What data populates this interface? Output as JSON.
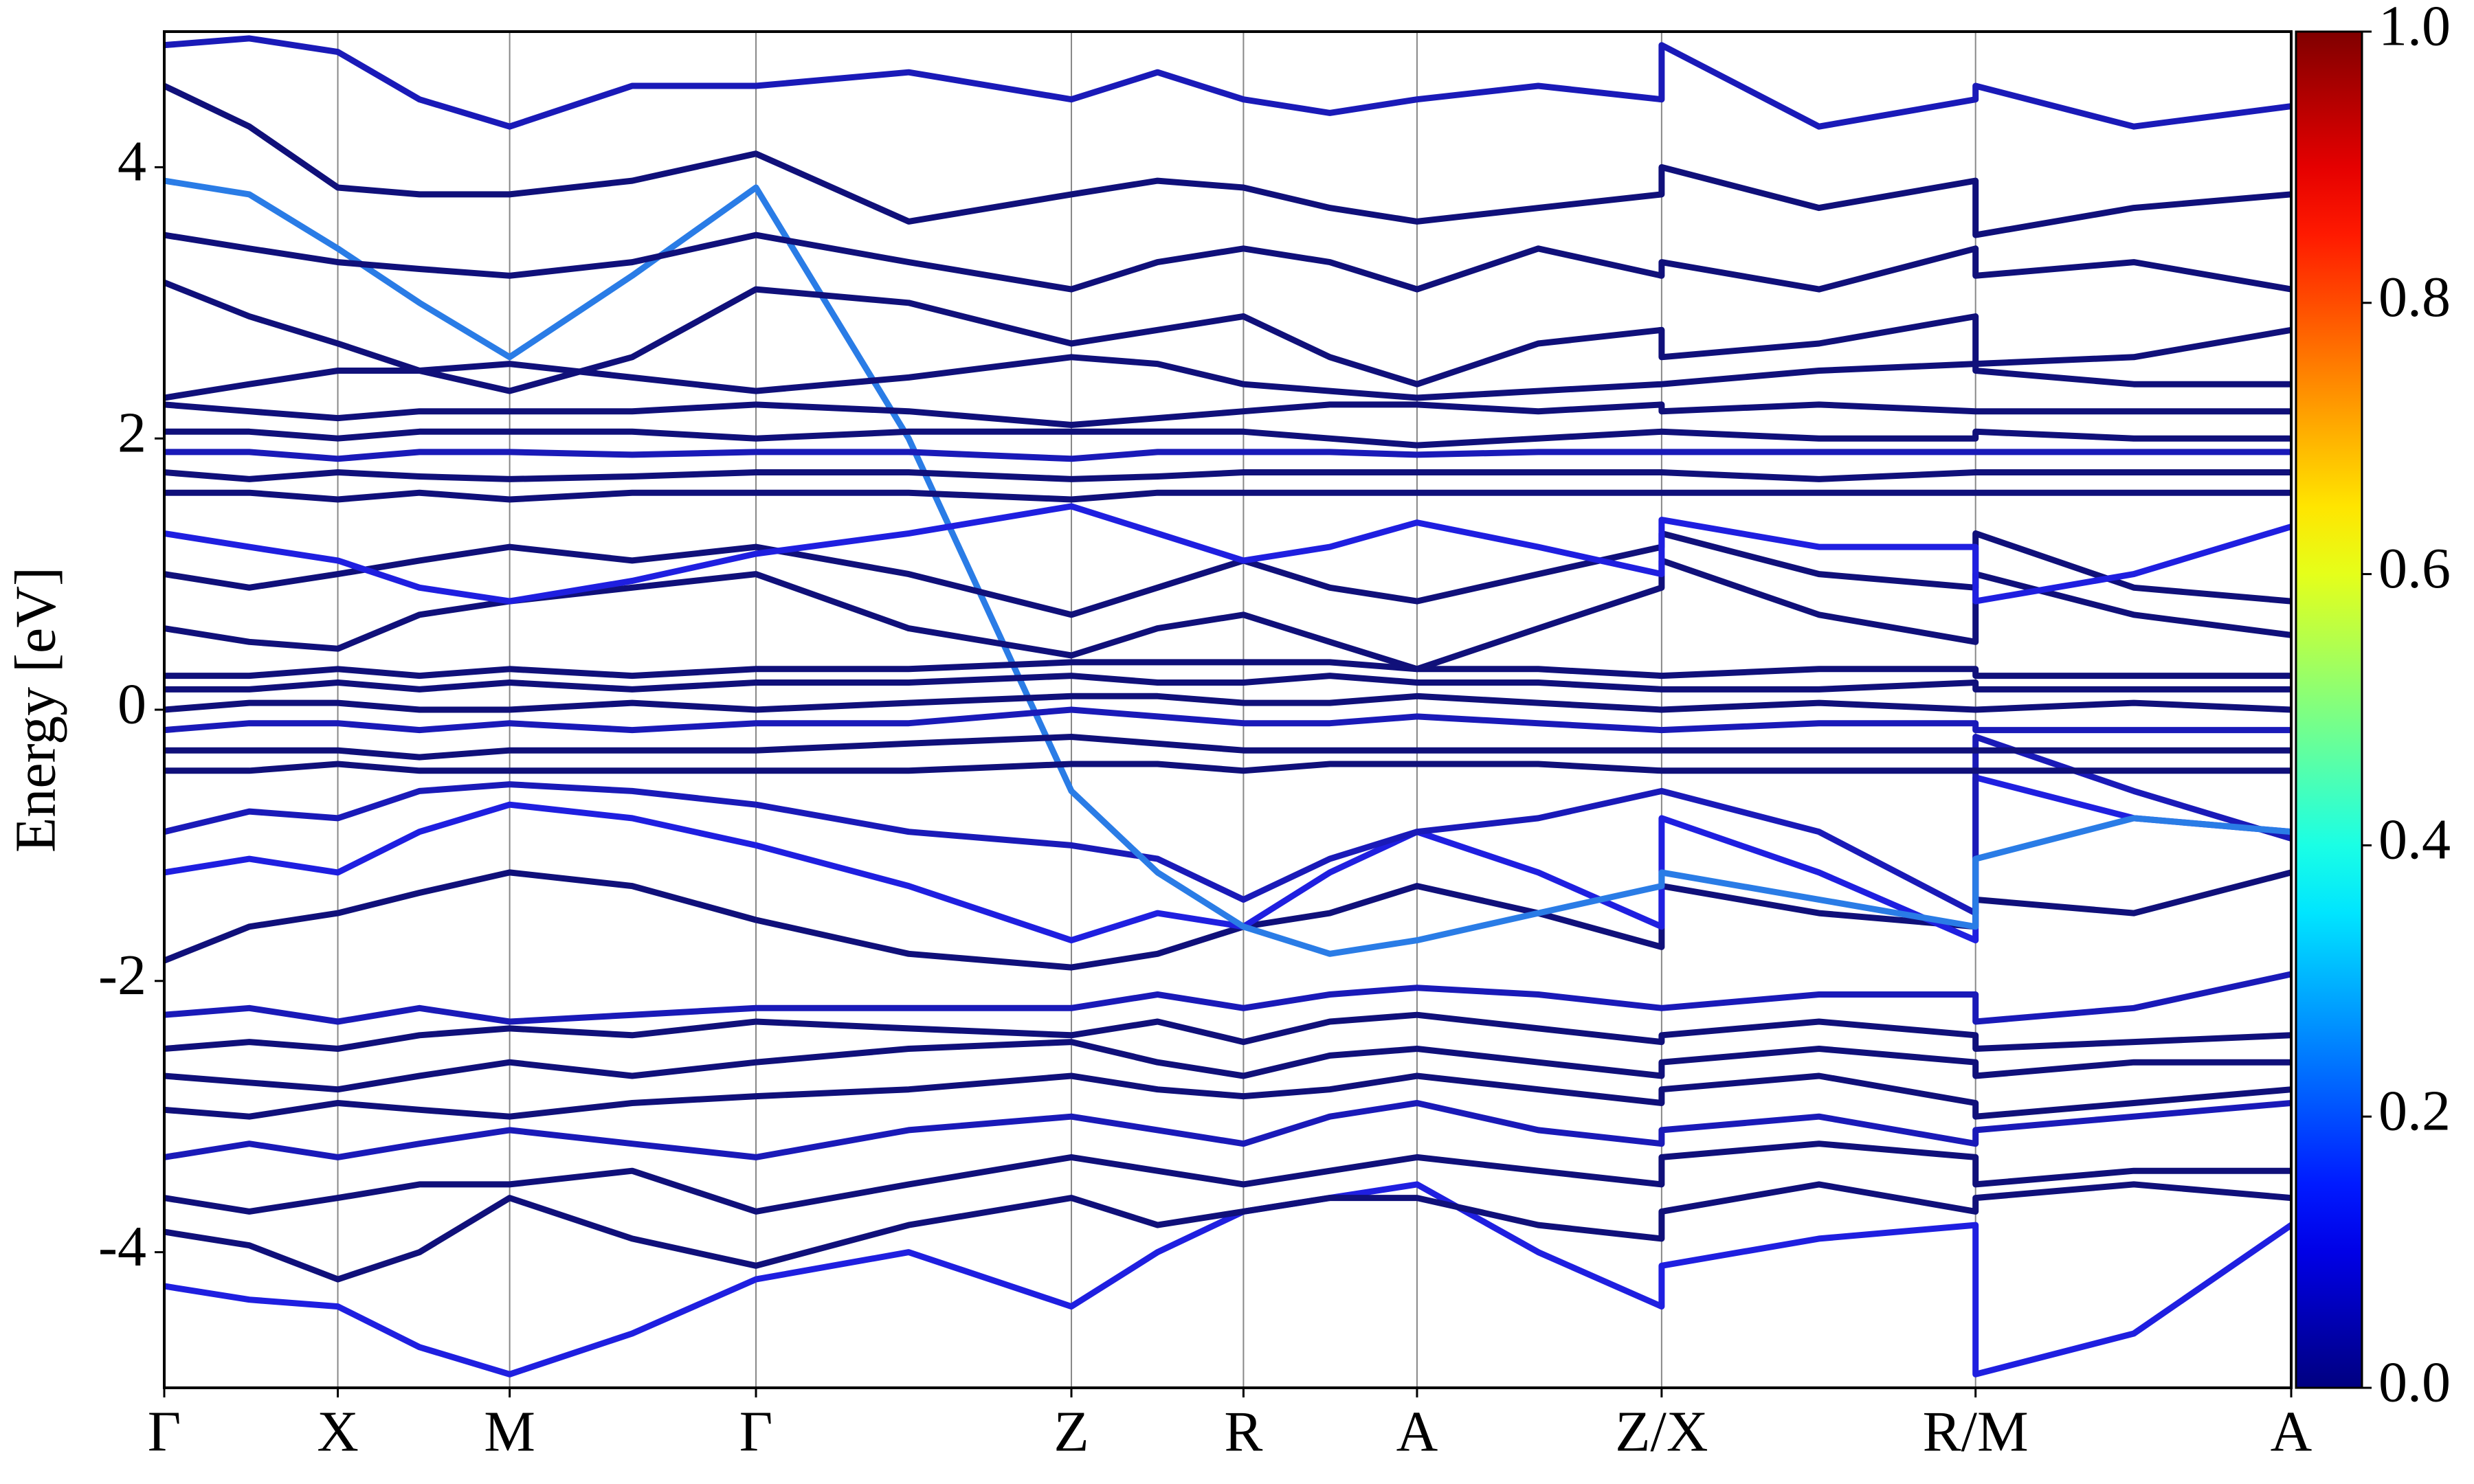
{
  "chart_data": {
    "type": "band",
    "ylabel": "Energy [eV]",
    "xlim": [
      0,
      1
    ],
    "xticks": [
      {
        "value": 0,
        "label": "Γ"
      },
      {
        "value": 0.0816,
        "label": "X"
      },
      {
        "value": 0.1624,
        "label": "M"
      },
      {
        "value": 0.2782,
        "label": "Γ"
      },
      {
        "value": 0.4265,
        "label": "Z"
      },
      {
        "value": 0.5074,
        "label": "R"
      },
      {
        "value": 0.589,
        "label": "A"
      },
      {
        "value": 0.704,
        "label": "Z/X"
      },
      {
        "value": 0.8516,
        "label": "R/M"
      },
      {
        "value": 1,
        "label": "A"
      }
    ],
    "ylim": [
      -5,
      5
    ],
    "yticks": [
      -4,
      -2,
      0,
      2,
      4
    ],
    "grid": true,
    "colormap": "jet",
    "clim": [
      0,
      1
    ],
    "cticks": [
      {
        "value": 0,
        "label": "0.0"
      },
      0.2,
      0.4,
      0.6,
      0.8,
      {
        "value": 1,
        "label": "1.0"
      }
    ],
    "x": [
      0,
      0.04,
      0.0816,
      0.12,
      0.1624,
      0.22,
      0.2782,
      0.35,
      0.4265,
      0.467,
      0.5074,
      0.548,
      0.589,
      0.646,
      0.704,
      0.704,
      0.778,
      0.8516,
      0.8516,
      0.926,
      1
    ],
    "series": [
      {
        "color": "#1f1fe0",
        "values": [
          -4.25,
          -4.35,
          -4.4,
          -4.7,
          -4.9,
          -4.6,
          -4.2,
          -4.0,
          -4.4,
          -4.0,
          -3.7,
          -3.6,
          -3.5,
          -4.0,
          -4.4,
          -4.1,
          -3.9,
          -3.8,
          -4.9,
          -4.6,
          -3.8
        ]
      },
      {
        "color": "#10107a",
        "values": [
          -3.85,
          -3.95,
          -4.2,
          -4.0,
          -3.6,
          -3.9,
          -4.1,
          -3.8,
          -3.6,
          -3.8,
          -3.7,
          -3.6,
          -3.6,
          -3.8,
          -3.9,
          -3.7,
          -3.5,
          -3.7,
          -3.6,
          -3.5,
          -3.6
        ]
      },
      {
        "color": "#10107a",
        "values": [
          -3.6,
          -3.7,
          -3.6,
          -3.5,
          -3.5,
          -3.4,
          -3.7,
          -3.5,
          -3.3,
          -3.4,
          -3.5,
          -3.4,
          -3.3,
          -3.4,
          -3.5,
          -3.3,
          -3.2,
          -3.3,
          -3.5,
          -3.4,
          -3.4
        ]
      },
      {
        "color": "#1a1ab8",
        "values": [
          -3.3,
          -3.2,
          -3.3,
          -3.2,
          -3.1,
          -3.2,
          -3.3,
          -3.1,
          -3.0,
          -3.1,
          -3.2,
          -3.0,
          -2.9,
          -3.1,
          -3.2,
          -3.1,
          -3.0,
          -3.2,
          -3.1,
          -3.0,
          -2.9
        ]
      },
      {
        "color": "#10107a",
        "values": [
          -2.95,
          -3.0,
          -2.9,
          -2.95,
          -3.0,
          -2.9,
          -2.85,
          -2.8,
          -2.7,
          -2.8,
          -2.85,
          -2.8,
          -2.7,
          -2.8,
          -2.9,
          -2.8,
          -2.7,
          -2.9,
          -3.0,
          -2.9,
          -2.8
        ]
      },
      {
        "color": "#10107a",
        "values": [
          -2.7,
          -2.75,
          -2.8,
          -2.7,
          -2.6,
          -2.7,
          -2.6,
          -2.5,
          -2.45,
          -2.6,
          -2.7,
          -2.55,
          -2.5,
          -2.6,
          -2.7,
          -2.6,
          -2.5,
          -2.6,
          -2.7,
          -2.6,
          -2.6
        ]
      },
      {
        "color": "#10107a",
        "values": [
          -2.5,
          -2.45,
          -2.5,
          -2.4,
          -2.35,
          -2.4,
          -2.3,
          -2.35,
          -2.4,
          -2.3,
          -2.45,
          -2.3,
          -2.25,
          -2.35,
          -2.45,
          -2.4,
          -2.3,
          -2.4,
          -2.5,
          -2.45,
          -2.4
        ]
      },
      {
        "color": "#1a1ab8",
        "values": [
          -2.25,
          -2.2,
          -2.3,
          -2.2,
          -2.3,
          -2.25,
          -2.2,
          -2.2,
          -2.2,
          -2.1,
          -2.2,
          -2.1,
          -2.05,
          -2.1,
          -2.2,
          -2.2,
          -2.1,
          -2.1,
          -2.3,
          -2.2,
          -1.95
        ]
      },
      {
        "color": "#10107a",
        "values": [
          -1.85,
          -1.6,
          -1.5,
          -1.35,
          -1.2,
          -1.3,
          -1.55,
          -1.8,
          -1.9,
          -1.8,
          -1.6,
          -1.5,
          -1.3,
          -1.5,
          -1.75,
          -1.3,
          -1.5,
          -1.6,
          -1.4,
          -1.5,
          -1.2
        ]
      },
      {
        "color": "#1f1fe0",
        "values": [
          -1.2,
          -1.1,
          -1.2,
          -0.9,
          -0.7,
          -0.8,
          -1.0,
          -1.3,
          -1.7,
          -1.5,
          -1.6,
          -1.2,
          -0.9,
          -1.2,
          -1.6,
          -0.8,
          -1.2,
          -1.7,
          -0.5,
          -0.8,
          -0.9
        ]
      },
      {
        "color": "#1a1ab8",
        "values": [
          -0.9,
          -0.75,
          -0.8,
          -0.6,
          -0.55,
          -0.6,
          -0.7,
          -0.9,
          -1.0,
          -1.1,
          -1.4,
          -1.1,
          -0.9,
          -0.8,
          -0.6,
          -0.6,
          -0.9,
          -1.5,
          -0.2,
          -0.6,
          -0.95
        ]
      },
      {
        "color": "#2a7ce6",
        "values": [
          3.9,
          3.8,
          3.4,
          3.0,
          2.6,
          3.2,
          3.85,
          2.0,
          -0.6,
          -1.2,
          -1.6,
          -1.8,
          -1.7,
          -1.5,
          -1.3,
          -1.2,
          -1.4,
          -1.6,
          -1.1,
          -0.8,
          -0.9
        ]
      },
      {
        "color": "#10107a",
        "values": [
          -0.45,
          -0.45,
          -0.4,
          -0.45,
          -0.45,
          -0.45,
          -0.45,
          -0.45,
          -0.4,
          -0.4,
          -0.45,
          -0.4,
          -0.4,
          -0.4,
          -0.45,
          -0.45,
          -0.45,
          -0.45,
          -0.45,
          -0.45,
          -0.45
        ]
      },
      {
        "color": "#10107a",
        "values": [
          -0.3,
          -0.3,
          -0.3,
          -0.35,
          -0.3,
          -0.3,
          -0.3,
          -0.25,
          -0.2,
          -0.25,
          -0.3,
          -0.3,
          -0.3,
          -0.3,
          -0.3,
          -0.3,
          -0.3,
          -0.3,
          -0.3,
          -0.3,
          -0.3
        ]
      },
      {
        "color": "#1a1ab8",
        "values": [
          -0.15,
          -0.1,
          -0.1,
          -0.15,
          -0.1,
          -0.15,
          -0.1,
          -0.1,
          0.0,
          -0.05,
          -0.1,
          -0.1,
          -0.05,
          -0.1,
          -0.15,
          -0.15,
          -0.1,
          -0.1,
          -0.15,
          -0.15,
          -0.15
        ]
      },
      {
        "color": "#10107a",
        "values": [
          0.0,
          0.05,
          0.05,
          0.0,
          0.0,
          0.05,
          0.0,
          0.05,
          0.1,
          0.1,
          0.05,
          0.05,
          0.1,
          0.05,
          0.0,
          0.0,
          0.05,
          0.0,
          0.0,
          0.05,
          0.0
        ]
      },
      {
        "color": "#10107a",
        "values": [
          0.15,
          0.15,
          0.2,
          0.15,
          0.2,
          0.15,
          0.2,
          0.2,
          0.25,
          0.2,
          0.2,
          0.25,
          0.2,
          0.2,
          0.15,
          0.15,
          0.15,
          0.2,
          0.15,
          0.15,
          0.15
        ]
      },
      {
        "color": "#10107a",
        "values": [
          0.25,
          0.25,
          0.3,
          0.25,
          0.3,
          0.25,
          0.3,
          0.3,
          0.35,
          0.35,
          0.35,
          0.35,
          0.3,
          0.3,
          0.25,
          0.25,
          0.3,
          0.3,
          0.25,
          0.25,
          0.25
        ]
      },
      {
        "color": "#10107a",
        "values": [
          0.6,
          0.5,
          0.45,
          0.7,
          0.8,
          0.9,
          1.0,
          0.6,
          0.4,
          0.6,
          0.7,
          0.5,
          0.3,
          0.6,
          0.9,
          1.1,
          0.7,
          0.5,
          1.0,
          0.7,
          0.55
        ]
      },
      {
        "color": "#10107a",
        "values": [
          1.0,
          0.9,
          1.0,
          1.1,
          1.2,
          1.1,
          1.2,
          1.0,
          0.7,
          0.9,
          1.1,
          0.9,
          0.8,
          1.0,
          1.2,
          1.3,
          1.0,
          0.9,
          1.3,
          0.9,
          0.8
        ]
      },
      {
        "color": "#1f1fe0",
        "values": [
          1.3,
          1.2,
          1.1,
          0.9,
          0.8,
          0.95,
          1.15,
          1.3,
          1.5,
          1.3,
          1.1,
          1.2,
          1.38,
          1.2,
          1.0,
          1.4,
          1.2,
          1.2,
          0.8,
          1.0,
          1.35
        ]
      },
      {
        "color": "#10107a",
        "values": [
          1.6,
          1.6,
          1.55,
          1.6,
          1.55,
          1.6,
          1.6,
          1.6,
          1.55,
          1.6,
          1.6,
          1.6,
          1.6,
          1.6,
          1.6,
          1.6,
          1.6,
          1.6,
          1.6,
          1.6,
          1.6
        ]
      },
      {
        "color": "#10107a",
        "values": [
          1.75,
          1.7,
          1.75,
          1.72,
          1.7,
          1.72,
          1.75,
          1.75,
          1.7,
          1.72,
          1.75,
          1.75,
          1.75,
          1.75,
          1.75,
          1.75,
          1.7,
          1.75,
          1.75,
          1.75,
          1.75
        ]
      },
      {
        "color": "#1a1ab8",
        "values": [
          1.9,
          1.9,
          1.85,
          1.9,
          1.9,
          1.88,
          1.9,
          1.9,
          1.85,
          1.9,
          1.9,
          1.9,
          1.88,
          1.9,
          1.9,
          1.9,
          1.9,
          1.9,
          1.9,
          1.9,
          1.9
        ]
      },
      {
        "color": "#10107a",
        "values": [
          2.05,
          2.05,
          2.0,
          2.05,
          2.05,
          2.05,
          2.0,
          2.05,
          2.05,
          2.05,
          2.05,
          2.0,
          1.95,
          2.0,
          2.05,
          2.05,
          2.0,
          2.0,
          2.05,
          2.0,
          2.0
        ]
      },
      {
        "color": "#10107a",
        "values": [
          2.25,
          2.2,
          2.15,
          2.2,
          2.2,
          2.2,
          2.25,
          2.2,
          2.1,
          2.15,
          2.2,
          2.25,
          2.25,
          2.2,
          2.25,
          2.2,
          2.25,
          2.2,
          2.2,
          2.2,
          2.2
        ]
      },
      {
        "color": "#10107a",
        "values": [
          2.3,
          2.4,
          2.5,
          2.5,
          2.55,
          2.45,
          2.35,
          2.45,
          2.6,
          2.55,
          2.4,
          2.35,
          2.3,
          2.35,
          2.4,
          2.4,
          2.5,
          2.55,
          2.5,
          2.4,
          2.4
        ]
      },
      {
        "color": "#10107a",
        "values": [
          3.15,
          2.9,
          2.7,
          2.5,
          2.35,
          2.6,
          3.1,
          3.0,
          2.7,
          2.8,
          2.9,
          2.6,
          2.4,
          2.7,
          2.8,
          2.6,
          2.7,
          2.9,
          2.55,
          2.6,
          2.8
        ]
      },
      {
        "color": "#10107a",
        "values": [
          3.5,
          3.4,
          3.3,
          3.25,
          3.2,
          3.3,
          3.5,
          3.3,
          3.1,
          3.3,
          3.4,
          3.3,
          3.1,
          3.4,
          3.2,
          3.3,
          3.1,
          3.4,
          3.2,
          3.3,
          3.1
        ]
      },
      {
        "color": "#10107a",
        "values": [
          4.6,
          4.3,
          3.85,
          3.8,
          3.8,
          3.9,
          4.1,
          3.6,
          3.8,
          3.9,
          3.85,
          3.7,
          3.6,
          3.7,
          3.8,
          4.0,
          3.7,
          3.9,
          3.5,
          3.7,
          3.8
        ]
      },
      {
        "color": "#1a1ab8",
        "values": [
          4.9,
          4.95,
          4.85,
          4.5,
          4.3,
          4.6,
          4.6,
          4.7,
          4.5,
          4.7,
          4.5,
          4.4,
          4.5,
          4.6,
          4.5,
          4.9,
          4.3,
          4.5,
          4.6,
          4.3,
          4.45
        ]
      }
    ]
  }
}
